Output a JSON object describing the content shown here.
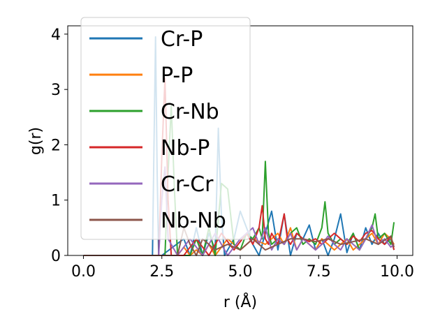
{
  "chart_data": {
    "type": "line",
    "xlabel": "r (Å)",
    "ylabel": "g(r)",
    "xlim": [
      -0.5,
      10.5
    ],
    "ylim": [
      0,
      4.15
    ],
    "grid": false,
    "legend_placement": "upper-left",
    "x_ticks": [
      {
        "value": 0.0,
        "label": "0.0"
      },
      {
        "value": 2.5,
        "label": "2.5"
      },
      {
        "value": 5.0,
        "label": "5.0"
      },
      {
        "value": 7.5,
        "label": "7.5"
      },
      {
        "value": 10.0,
        "label": "10.0"
      }
    ],
    "y_ticks": [
      {
        "value": 0,
        "label": "0"
      },
      {
        "value": 1,
        "label": "1"
      },
      {
        "value": 2,
        "label": "2"
      },
      {
        "value": 3,
        "label": "3"
      },
      {
        "value": 4,
        "label": "4"
      }
    ],
    "series": [
      {
        "name": "Cr-P",
        "color": "#1f77b4",
        "x": [
          0.0,
          2.2,
          2.25,
          2.3,
          2.35,
          2.4,
          2.5,
          3.2,
          3.4,
          3.6,
          3.8,
          4.0,
          4.2,
          4.3,
          4.4,
          4.5,
          4.8,
          5.0,
          5.2,
          5.4,
          5.6,
          5.8,
          6.0,
          6.2,
          6.4,
          6.6,
          6.8,
          7.0,
          7.2,
          7.4,
          7.6,
          7.8,
          8.0,
          8.2,
          8.4,
          8.6,
          8.8,
          9.0,
          9.2,
          9.4,
          9.6,
          9.8,
          9.9
        ],
        "y": [
          0.0,
          0.0,
          2.0,
          3.95,
          1.5,
          0.0,
          0.0,
          0.3,
          0.0,
          0.5,
          0.0,
          0.4,
          0.1,
          2.3,
          0.7,
          0.0,
          0.3,
          0.8,
          0.5,
          0.2,
          0.0,
          0.4,
          0.8,
          0.1,
          0.75,
          0.0,
          0.4,
          0.3,
          0.55,
          0.1,
          0.3,
          0.0,
          0.3,
          0.75,
          0.05,
          0.4,
          0.1,
          0.5,
          0.2,
          0.4,
          0.2,
          0.3,
          0.1
        ]
      },
      {
        "name": "P-P",
        "color": "#ff7f0e",
        "x": [
          0.0,
          3.0,
          3.2,
          3.4,
          3.6,
          3.8,
          4.0,
          4.2,
          4.6,
          5.0,
          5.4,
          5.8,
          6.2,
          6.4,
          6.6,
          6.8,
          7.0,
          7.2,
          7.4,
          7.6,
          7.8,
          8.0,
          8.2,
          8.4,
          8.6,
          8.8,
          9.0,
          9.2,
          9.4,
          9.6,
          9.8,
          9.9
        ],
        "y": [
          0.0,
          0.0,
          0.15,
          0.0,
          0.1,
          0.0,
          0.2,
          0.0,
          0.3,
          0.1,
          0.3,
          0.2,
          0.4,
          0.2,
          0.5,
          0.1,
          0.3,
          0.2,
          0.1,
          0.3,
          0.2,
          0.1,
          0.2,
          0.3,
          0.1,
          0.2,
          0.3,
          0.4,
          0.2,
          0.4,
          0.3,
          0.2
        ]
      },
      {
        "name": "Cr-Nb",
        "color": "#2ca02c",
        "x": [
          0.0,
          2.6,
          2.7,
          2.8,
          2.9,
          3.0,
          3.4,
          3.6,
          3.8,
          4.0,
          4.2,
          4.4,
          4.6,
          4.8,
          5.0,
          5.2,
          5.4,
          5.6,
          5.7,
          5.8,
          5.9,
          6.0,
          6.2,
          6.4,
          6.6,
          6.8,
          7.0,
          7.2,
          7.4,
          7.6,
          7.7,
          7.8,
          8.0,
          8.2,
          8.4,
          8.6,
          8.8,
          9.0,
          9.2,
          9.3,
          9.4,
          9.6,
          9.8,
          9.9
        ],
        "y": [
          0.0,
          0.0,
          1.5,
          2.7,
          1.2,
          0.0,
          0.0,
          0.3,
          0.0,
          0.5,
          0.0,
          1.3,
          1.2,
          0.2,
          0.1,
          0.4,
          0.3,
          0.5,
          0.3,
          1.7,
          0.4,
          0.2,
          0.3,
          0.2,
          0.4,
          0.5,
          0.2,
          0.3,
          0.2,
          0.5,
          0.97,
          0.4,
          0.2,
          0.3,
          0.2,
          0.4,
          0.1,
          0.3,
          0.5,
          0.75,
          0.3,
          0.4,
          0.2,
          0.6
        ]
      },
      {
        "name": "Nb-P",
        "color": "#d62728",
        "x": [
          0.0,
          2.4,
          2.5,
          2.6,
          2.7,
          2.8,
          3.2,
          3.6,
          4.0,
          4.4,
          4.8,
          5.2,
          5.4,
          5.6,
          5.7,
          5.8,
          5.9,
          6.0,
          6.2,
          6.4,
          6.5,
          6.6,
          6.8,
          7.0,
          7.2,
          7.4,
          7.6,
          7.8,
          8.0,
          8.2,
          8.4,
          8.6,
          8.8,
          9.0,
          9.2,
          9.4,
          9.6,
          9.8,
          9.9
        ],
        "y": [
          0.0,
          0.0,
          1.8,
          3.2,
          1.0,
          0.0,
          0.0,
          0.3,
          0.0,
          0.4,
          0.1,
          0.4,
          0.2,
          0.5,
          0.9,
          0.3,
          0.2,
          0.4,
          0.2,
          0.75,
          0.3,
          0.2,
          0.4,
          0.3,
          0.25,
          0.3,
          0.2,
          0.3,
          0.4,
          0.3,
          0.2,
          0.35,
          0.25,
          0.4,
          0.45,
          0.3,
          0.2,
          0.35,
          0.1
        ]
      },
      {
        "name": "Cr-Cr",
        "color": "#9467bd",
        "x": [
          0.0,
          2.4,
          2.5,
          2.6,
          2.7,
          3.0,
          3.4,
          3.8,
          4.2,
          4.6,
          5.0,
          5.4,
          5.6,
          5.8,
          6.0,
          6.2,
          6.4,
          6.6,
          6.8,
          7.0,
          7.2,
          7.4,
          7.6,
          7.8,
          8.0,
          8.2,
          8.4,
          8.6,
          8.8,
          9.0,
          9.2,
          9.4,
          9.6,
          9.8,
          9.9
        ],
        "y": [
          0.0,
          0.0,
          1.0,
          1.6,
          0.3,
          0.0,
          0.3,
          0.0,
          0.4,
          0.0,
          0.3,
          0.5,
          0.2,
          0.5,
          0.1,
          0.3,
          0.2,
          0.4,
          0.1,
          0.3,
          0.2,
          0.1,
          0.2,
          0.35,
          0.2,
          0.1,
          0.3,
          0.2,
          0.1,
          0.3,
          0.55,
          0.2,
          0.3,
          0.15,
          0.2
        ]
      },
      {
        "name": "Nb-Nb",
        "color": "#8c564b",
        "x": [
          0.0,
          3.0,
          3.2,
          3.4,
          3.6,
          3.8,
          4.2,
          4.6,
          5.0,
          5.4,
          5.8,
          6.2,
          6.6,
          7.0,
          7.4,
          7.8,
          8.2,
          8.6,
          9.0,
          9.4,
          9.8,
          9.9
        ],
        "y": [
          0.0,
          0.0,
          0.5,
          0.2,
          0.0,
          0.3,
          0.1,
          0.2,
          0.1,
          0.3,
          0.1,
          0.2,
          0.3,
          0.3,
          0.25,
          0.3,
          0.2,
          0.25,
          0.3,
          0.2,
          0.35,
          0.15
        ]
      }
    ]
  }
}
